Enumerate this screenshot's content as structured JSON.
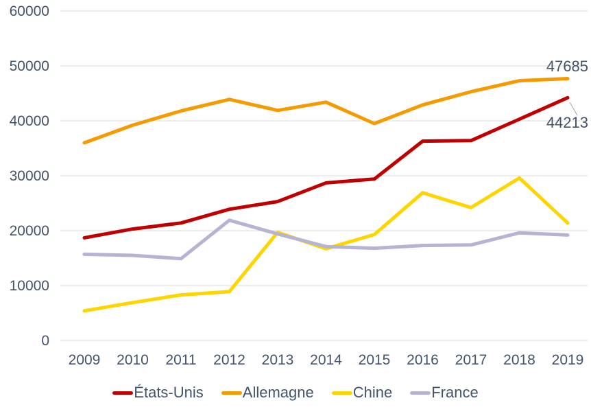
{
  "chart_data": {
    "type": "line",
    "x": [
      2009,
      2010,
      2011,
      2012,
      2013,
      2014,
      2015,
      2016,
      2017,
      2018,
      2019
    ],
    "series": [
      {
        "name": "États-Unis",
        "color": "#C00000",
        "values": [
          18700,
          20300,
          21400,
          23900,
          25300,
          28700,
          29400,
          36300,
          36400,
          40300,
          44213
        ]
      },
      {
        "name": "Allemagne",
        "color": "#F59B00",
        "values": [
          36000,
          39200,
          41800,
          43900,
          41900,
          43400,
          39500,
          42900,
          45300,
          47300,
          47685
        ]
      },
      {
        "name": "Chine",
        "color": "#FFD500",
        "values": [
          5400,
          6900,
          8300,
          8900,
          19700,
          16700,
          19300,
          26900,
          24200,
          29600,
          21400
        ]
      },
      {
        "name": "France",
        "color": "#B7B3D3",
        "values": [
          15700,
          15500,
          14900,
          21900,
          19400,
          17100,
          16800,
          17300,
          17400,
          19600,
          19200
        ]
      }
    ],
    "title": "",
    "xlabel": "",
    "ylabel": "",
    "ylim": [
      0,
      60000
    ],
    "ytick_step": 10000,
    "yticks": [
      "0",
      "10000",
      "20000",
      "30000",
      "40000",
      "50000",
      "60000"
    ],
    "grid": "horizontal-only",
    "legend_position": "bottom-center",
    "annotations": [
      {
        "text": "47685",
        "series": "Allemagne",
        "year": 2019
      },
      {
        "text": "44213",
        "series": "États-Unis",
        "year": 2019
      }
    ],
    "colors": {
      "axis_text": "#44546A",
      "gridline": "#D9D9D9",
      "background": "#FFFFFF",
      "leader_line": "#A6A6A6"
    }
  }
}
